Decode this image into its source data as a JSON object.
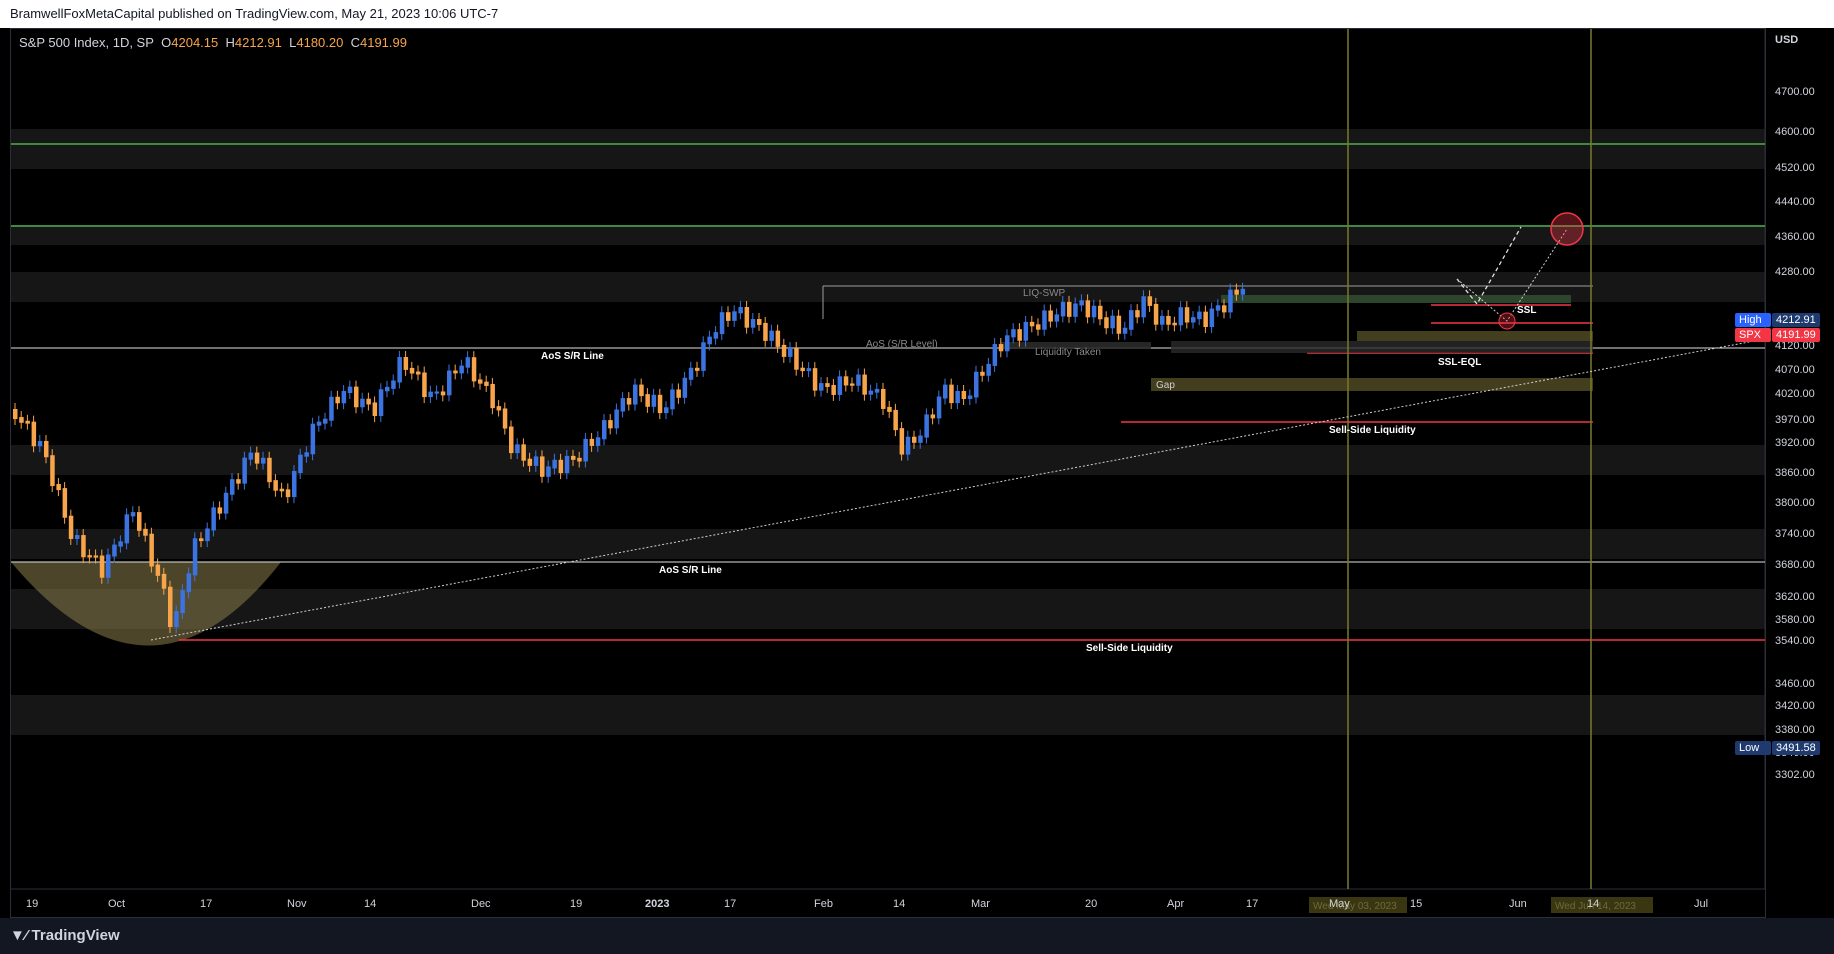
{
  "header": {
    "published": "BramwellFoxMetaCapital published on TradingView.com, May 21, 2023 10:06 UTC-7"
  },
  "symbol": {
    "name": "S&P 500 Index, 1D, SP",
    "o_label": "O",
    "o": "4204.15",
    "h_label": "H",
    "h": "4212.91",
    "l_label": "L",
    "l": "4180.20",
    "c_label": "C",
    "c": "4191.99"
  },
  "price_axis": {
    "currency": "USD",
    "labels": [
      "4700.00",
      "4600.00",
      "4520.00",
      "4440.00",
      "4360.00",
      "4280.00",
      "4120.00",
      "4070.00",
      "4020.00",
      "3970.00",
      "3920.00",
      "3860.00",
      "3800.00",
      "3740.00",
      "3680.00",
      "3620.00",
      "3580.00",
      "3540.00",
      "3460.00",
      "3420.00",
      "3380.00",
      "3340.00",
      "3302.00"
    ],
    "high_label": "High",
    "high_value": "4212.91",
    "last_label": "SPX",
    "last_value": "4191.99",
    "low_label": "Low",
    "low_value": "3491.58"
  },
  "time_axis": {
    "labels": [
      "19",
      "Oct",
      "17",
      "Nov",
      "14",
      "Dec",
      "19",
      "2023",
      "17",
      "Feb",
      "14",
      "Mar",
      "20",
      "Apr",
      "17",
      "May",
      "15",
      "Jun",
      "14",
      "Jul"
    ],
    "marker_1": "Wed May 03, 2023",
    "marker_2": "Wed Jun 14, 2023"
  },
  "annotations": {
    "aos_line_upper": "AoS S/R Line",
    "aos_line_lower": "AoS S/R Line",
    "aos_level": "AoS (S/R Level)",
    "liq_swp": "LIQ-SWP",
    "liquidity_taken": "Liquidity Taken",
    "ssl": "SSL",
    "ssl_eql": "SSL-EQL",
    "gap": "Gap",
    "sell_side_1": "Sell-Side Liquidity",
    "sell_side_2": "Sell-Side Liquidity"
  },
  "footer": {
    "brand": "TradingView"
  },
  "colors": {
    "up": "#3b74e0",
    "down": "#f7a44a",
    "green_line": "#4caf50",
    "red_line": "#f23645",
    "band": "#1a1a1a",
    "vline": "#6b6b2a"
  }
}
